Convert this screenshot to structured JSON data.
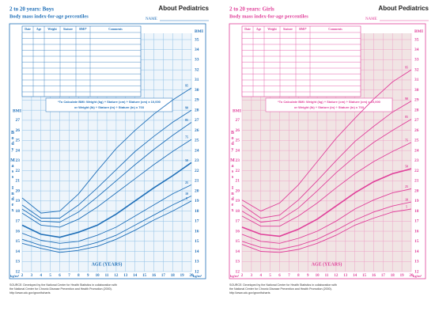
{
  "chart_data": [
    {
      "type": "line",
      "title": "2 to 20 years: Boys",
      "subtitle": "Body mass index-for-age percentiles",
      "brand": "About Pediatrics",
      "name_label": "NAME",
      "table_headers": [
        "Date",
        "Age",
        "Weight",
        "Stature",
        "BMI*",
        "Comments"
      ],
      "formula": [
        "*To Calculate BMI: Weight (kg) ÷ Stature (cm) ÷ Stature (cm) x 10,000",
        "or Weight (lb) ÷ Stature (in) ÷ Stature (in) x 703"
      ],
      "y_axis_label": "BMI",
      "unit_label": "kg/m²",
      "vertical_label": "Body Mass Index",
      "x_label": "AGE (YEARS)",
      "source": [
        "SOURCE: Developed by the National Center for Health Statistics in collaboration with",
        "the National Center for Chronic Disease Prevention and Health Promotion (2000).",
        "http://www.cdc.gov/growthcharts"
      ],
      "color": "#1f6fb8",
      "grid_color": "#8fc0e6",
      "background": "#eef5fb",
      "grid": true,
      "x": [
        2,
        4,
        6,
        8,
        10,
        12,
        14,
        16,
        18,
        20
      ],
      "xlim": [
        2,
        20
      ],
      "xticks": [
        2,
        3,
        4,
        5,
        6,
        7,
        8,
        9,
        10,
        11,
        12,
        13,
        14,
        15,
        16,
        17,
        18,
        19,
        20
      ],
      "ylim": [
        12,
        35
      ],
      "yticks": [
        12,
        13,
        14,
        15,
        16,
        17,
        18,
        19,
        20,
        21,
        22,
        23,
        24,
        25,
        26,
        27
      ],
      "y2lim": [
        12,
        35
      ],
      "y2ticks": [
        12,
        13,
        14,
        15,
        16,
        17,
        18,
        19,
        20,
        21,
        22,
        23,
        24,
        25,
        26,
        27,
        28,
        29,
        30,
        31,
        32,
        33,
        34,
        35
      ],
      "series": [
        {
          "name": "95",
          "color": "#1f6fb8",
          "values": [
            19.3,
            17.8,
            18.0,
            19.7,
            22.0,
            24.2,
            26.0,
            27.6,
            29.0,
            30.2
          ]
        },
        {
          "name": "90",
          "color": "#1f6fb8",
          "values": [
            18.6,
            17.3,
            17.3,
            18.6,
            20.3,
            22.1,
            23.9,
            25.4,
            26.8,
            28.0
          ]
        },
        {
          "name": "85",
          "color": "#1f6fb8",
          "values": [
            18.2,
            17.0,
            16.9,
            17.9,
            19.4,
            21.0,
            22.6,
            24.1,
            25.5,
            26.8
          ]
        },
        {
          "name": "75",
          "color": "#1f6fb8",
          "values": [
            17.8,
            16.6,
            16.4,
            17.2,
            18.4,
            19.8,
            21.2,
            22.6,
            23.9,
            25.1
          ]
        },
        {
          "name": "50",
          "color": "#1f6fb8",
          "values": [
            16.6,
            15.7,
            15.4,
            15.9,
            16.6,
            17.7,
            19.0,
            20.3,
            21.5,
            22.8
          ]
        },
        {
          "name": "25",
          "color": "#1f6fb8",
          "values": [
            15.8,
            15.1,
            14.8,
            15.0,
            15.6,
            16.4,
            17.5,
            18.6,
            19.7,
            20.6
          ]
        },
        {
          "name": "10",
          "color": "#1f6fb8",
          "values": [
            15.2,
            14.6,
            14.2,
            14.4,
            14.9,
            15.6,
            16.6,
            17.6,
            18.6,
            19.5
          ]
        },
        {
          "name": "5",
          "color": "#1f6fb8",
          "values": [
            14.8,
            14.3,
            13.9,
            14.1,
            14.5,
            15.2,
            16.1,
            17.1,
            18.0,
            19.0
          ]
        }
      ]
    },
    {
      "type": "line",
      "title": "2 to 20 years: Girls",
      "subtitle": "Body mass index-for-age percentiles",
      "brand": "About Pediatrics",
      "name_label": "NAME",
      "table_headers": [
        "Date",
        "Age",
        "Weight",
        "Stature",
        "BMI*",
        "Comments"
      ],
      "formula": [
        "*To Calculate BMI: Weight (kg) ÷ Stature (cm) ÷ Stature (cm) x 10,000",
        "or Weight (lb) ÷ Stature (in) ÷ Stature (in) x 703"
      ],
      "y_axis_label": "BMI",
      "unit_label": "kg/m²",
      "vertical_label": "Body Mass Index",
      "x_label": "AGE (YEARS)",
      "source": [
        "SOURCE: Developed by the National Center for Health Statistics in collaboration with",
        "the National Center for Chronic Disease Prevention and Health Promotion (2000).",
        "http://www.cdc.gov/growthcharts"
      ],
      "color": "#e0409a",
      "grid_color": "#eda3c8",
      "background": "#f1e4e4",
      "grid": true,
      "x": [
        2,
        4,
        6,
        8,
        10,
        12,
        14,
        16,
        18,
        20
      ],
      "xlim": [
        2,
        20
      ],
      "xticks": [
        2,
        3,
        4,
        5,
        6,
        7,
        8,
        9,
        10,
        11,
        12,
        13,
        14,
        15,
        16,
        17,
        18,
        19,
        20
      ],
      "ylim": [
        12,
        35
      ],
      "yticks": [
        12,
        13,
        14,
        15,
        16,
        17,
        18,
        19,
        20,
        21,
        22,
        23,
        24,
        25,
        26,
        27
      ],
      "y2lim": [
        12,
        35
      ],
      "y2ticks": [
        12,
        13,
        14,
        15,
        16,
        17,
        18,
        19,
        20,
        21,
        22,
        23,
        24,
        25,
        26,
        27,
        28,
        29,
        30,
        31,
        32,
        33,
        34,
        35
      ],
      "series": [
        {
          "name": "95",
          "color": "#e0409a",
          "values": [
            19.1,
            18.0,
            18.8,
            20.6,
            22.9,
            25.2,
            27.2,
            29.1,
            30.8,
            32.0
          ]
        },
        {
          "name": "90",
          "color": "#e0409a",
          "values": [
            18.6,
            17.3,
            17.6,
            19.1,
            21.0,
            23.0,
            24.9,
            26.4,
            27.8,
            28.9
          ]
        },
        {
          "name": "85",
          "color": "#e0409a",
          "values": [
            18.0,
            16.9,
            17.1,
            18.3,
            20.0,
            21.8,
            23.4,
            24.8,
            26.0,
            27.1
          ]
        },
        {
          "name": "75",
          "color": "#e0409a",
          "values": [
            17.5,
            16.5,
            16.5,
            17.5,
            18.8,
            20.3,
            21.7,
            22.9,
            23.9,
            24.8
          ]
        },
        {
          "name": "50",
          "color": "#e0409a",
          "values": [
            16.4,
            15.7,
            15.5,
            16.2,
            17.2,
            18.5,
            19.8,
            20.9,
            21.7,
            22.2
          ]
        },
        {
          "name": "25",
          "color": "#e0409a",
          "values": [
            15.7,
            15.0,
            14.8,
            15.3,
            16.0,
            17.0,
            18.2,
            19.1,
            19.8,
            20.2
          ]
        },
        {
          "name": "10",
          "color": "#e0409a",
          "values": [
            15.0,
            14.4,
            14.2,
            14.6,
            15.2,
            16.1,
            17.1,
            17.9,
            18.5,
            18.9
          ]
        },
        {
          "name": "5",
          "color": "#e0409a",
          "values": [
            14.7,
            14.0,
            13.9,
            14.2,
            14.8,
            15.6,
            16.6,
            17.3,
            17.9,
            18.2
          ]
        }
      ]
    }
  ]
}
